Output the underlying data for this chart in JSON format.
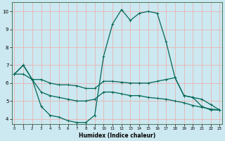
{
  "xlabel": "Humidex (Indice chaleur)",
  "bg_color": "#cce8f0",
  "grid_color": "#e8b4b4",
  "line_color": "#006655",
  "xlim": [
    -0.3,
    23.3
  ],
  "ylim": [
    3.7,
    10.5
  ],
  "xticks": [
    0,
    1,
    2,
    3,
    4,
    5,
    6,
    7,
    8,
    9,
    10,
    11,
    12,
    13,
    14,
    15,
    16,
    17,
    18,
    19,
    20,
    21,
    22,
    23
  ],
  "yticks": [
    4,
    5,
    6,
    7,
    8,
    9,
    10
  ],
  "line_spike_x": [
    0,
    1,
    2,
    3,
    4,
    5,
    6,
    7,
    8,
    9,
    10,
    11,
    12,
    13,
    14,
    15,
    16,
    17,
    18,
    19,
    20,
    21,
    22,
    23
  ],
  "line_spike_y": [
    6.5,
    7.0,
    6.2,
    4.7,
    4.2,
    4.1,
    3.9,
    3.8,
    3.8,
    4.2,
    7.5,
    9.3,
    10.1,
    9.5,
    9.9,
    10.0,
    9.9,
    8.3,
    6.3,
    5.3,
    5.2,
    4.7,
    4.5,
    4.5
  ],
  "line_upper_x": [
    0,
    1,
    2,
    3,
    4,
    5,
    6,
    7,
    8,
    9,
    10,
    11,
    12,
    13,
    14,
    15,
    16,
    17,
    18,
    19,
    20,
    21,
    22,
    23
  ],
  "line_upper_y": [
    6.5,
    7.0,
    6.2,
    6.2,
    6.0,
    5.9,
    5.9,
    5.85,
    5.7,
    5.7,
    6.1,
    6.1,
    6.05,
    6.0,
    6.0,
    6.0,
    6.1,
    6.2,
    6.3,
    5.3,
    5.2,
    5.1,
    4.8,
    4.5
  ],
  "line_lower_x": [
    0,
    1,
    2,
    3,
    4,
    5,
    6,
    7,
    8,
    9,
    10,
    11,
    12,
    13,
    14,
    15,
    16,
    17,
    18,
    19,
    20,
    21,
    22,
    23
  ],
  "line_lower_y": [
    6.5,
    6.5,
    6.2,
    5.5,
    5.3,
    5.2,
    5.1,
    5.0,
    5.0,
    5.1,
    5.5,
    5.5,
    5.4,
    5.3,
    5.3,
    5.2,
    5.15,
    5.1,
    5.0,
    4.9,
    4.75,
    4.65,
    4.55,
    4.5
  ]
}
